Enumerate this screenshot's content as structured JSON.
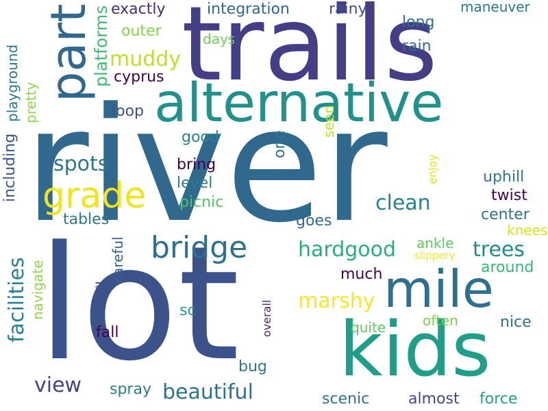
{
  "words": [
    {
      "text": "river",
      "color": "#31688e"
    },
    {
      "text": "lot",
      "color": "#3b528b"
    },
    {
      "text": "trails",
      "color": "#433e85"
    },
    {
      "text": "alternative",
      "color": "#21918c"
    },
    {
      "text": "kids",
      "color": "#1f9e89"
    },
    {
      "text": "mile",
      "color": "#2c728e"
    },
    {
      "text": "part",
      "color": "#31688e"
    },
    {
      "text": "grade",
      "color": "#f0e51a"
    },
    {
      "text": "bridge",
      "color": "#2c728e"
    },
    {
      "text": "facilities",
      "color": "#26828e"
    },
    {
      "text": "clean",
      "color": "#25858e"
    },
    {
      "text": "trees",
      "color": "#228b8d"
    },
    {
      "text": "hardgood",
      "color": "#29af7f"
    },
    {
      "text": "marshy",
      "color": "#fde725"
    },
    {
      "text": "muddy",
      "color": "#c2df23"
    },
    {
      "text": "spots",
      "color": "#2a788e"
    },
    {
      "text": "platforms",
      "color": "#3fbc73"
    },
    {
      "text": "view",
      "color": "#414487"
    },
    {
      "text": "beautiful",
      "color": "#2c728e"
    },
    {
      "text": "exactly",
      "color": "#472d7b"
    },
    {
      "text": "integration",
      "color": "#31688e"
    },
    {
      "text": "rainy",
      "color": "#3b528b"
    },
    {
      "text": "maneuver",
      "color": "#2a788e"
    },
    {
      "text": "long",
      "color": "#2c728e"
    },
    {
      "text": "rain",
      "color": "#31688e"
    },
    {
      "text": "outer",
      "color": "#84d44b"
    },
    {
      "text": "days",
      "color": "#6ece58"
    },
    {
      "text": "cyprus",
      "color": "#440154"
    },
    {
      "text": "loop",
      "color": "#3b528b"
    },
    {
      "text": "playground",
      "color": "#2a788e"
    },
    {
      "text": "pretty",
      "color": "#8fd744"
    },
    {
      "text": "including",
      "color": "#39568c"
    },
    {
      "text": "good",
      "color": "#26828e"
    },
    {
      "text": "one",
      "color": "#2c728e"
    },
    {
      "text": "seen",
      "color": "#c2df23"
    },
    {
      "text": "bring",
      "color": "#440154"
    },
    {
      "text": "level",
      "color": "#287c8e"
    },
    {
      "text": "picnic",
      "color": "#52c569"
    },
    {
      "text": "tables",
      "color": "#2a788e"
    },
    {
      "text": "goes",
      "color": "#31688e"
    },
    {
      "text": "enjoy",
      "color": "#e5e419"
    },
    {
      "text": "uphill",
      "color": "#2a788e"
    },
    {
      "text": "twist",
      "color": "#440154"
    },
    {
      "text": "center",
      "color": "#2c728e"
    },
    {
      "text": "knees",
      "color": "#d8e219"
    },
    {
      "text": "ankle",
      "color": "#5ec962"
    },
    {
      "text": "slippery",
      "color": "#fde725"
    },
    {
      "text": "around",
      "color": "#35b779"
    },
    {
      "text": "much",
      "color": "#440154"
    },
    {
      "text": "careful",
      "color": "#35608d"
    },
    {
      "text": "full",
      "color": "#3b528b"
    },
    {
      "text": "navigate",
      "color": "#8fd744"
    },
    {
      "text": "fall",
      "color": "#440154"
    },
    {
      "text": "sc",
      "color": "#1f9e89"
    },
    {
      "text": "overall",
      "color": "#482878"
    },
    {
      "text": "quite",
      "color": "#5ec962"
    },
    {
      "text": "often",
      "color": "#7ad151"
    },
    {
      "text": "nice",
      "color": "#2c728e"
    },
    {
      "text": "bug",
      "color": "#2a788e"
    },
    {
      "text": "spray",
      "color": "#287c8e"
    },
    {
      "text": "scenic",
      "color": "#2c728e"
    },
    {
      "text": "almost",
      "color": "#3e4989"
    },
    {
      "text": "force",
      "color": "#20a386"
    }
  ]
}
